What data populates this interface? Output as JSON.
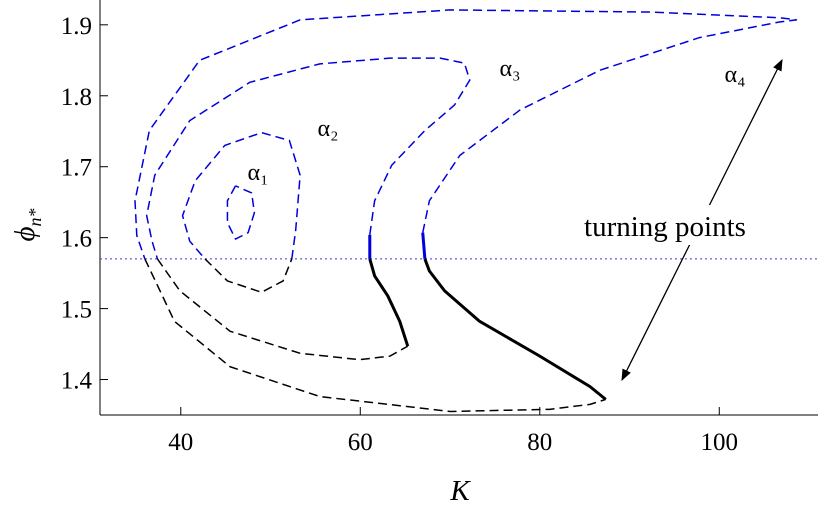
{
  "chart_data": {
    "type": "line",
    "x_label": "K",
    "y_label": {
      "symbol": "ϕ",
      "subscript": "n*"
    },
    "xlim": [
      31,
      111
    ],
    "ylim": [
      1.35,
      1.935
    ],
    "xticks": [
      40,
      60,
      80,
      100
    ],
    "yticks": [
      1.4,
      1.5,
      1.6,
      1.7,
      1.8,
      1.9
    ],
    "reference_line": {
      "y": 1.57,
      "color": "#3a3ad0",
      "style": "dotted"
    },
    "annotation": "turning points",
    "series": [
      {
        "name": "α₁",
        "segments": [
          {
            "style": "dashed",
            "color": "#0000dd",
            "width": 1.5,
            "x": [
              46.1,
              45.2,
              45.2,
              46.1,
              47.5,
              48.2,
              47.9,
              46.1
            ],
            "y": [
              1.673,
              1.652,
              1.621,
              1.598,
              1.607,
              1.635,
              1.663,
              1.673
            ]
          }
        ]
      },
      {
        "name": "α₂",
        "segments": [
          {
            "style": "dashed",
            "color": "#0000dd",
            "width": 1.5,
            "x": [
              52.37,
              52.8,
              53.3,
              52.1,
              49.0,
              44.9,
              41.6,
              40.2,
              41.0,
              42.7
            ],
            "y": [
              1.57,
              1.61,
              1.688,
              1.737,
              1.748,
              1.73,
              1.68,
              1.631,
              1.595,
              1.57
            ]
          },
          {
            "style": "dashed",
            "color": "#000000",
            "width": 1.5,
            "x": [
              42.7,
              45.2,
              49.0,
              51.4,
              52.37
            ],
            "y": [
              1.57,
              1.539,
              1.523,
              1.539,
              1.57
            ]
          }
        ]
      },
      {
        "name": "α₃",
        "segments": [
          {
            "style": "solid",
            "color": "#000000",
            "width": 3,
            "x": [
              65.29,
              64.4,
              63.06,
              61.6,
              61.06
            ],
            "y": [
              1.447,
              1.482,
              1.518,
              1.546,
              1.57
            ]
          },
          {
            "style": "solid",
            "color": "#0000dd",
            "width": 3,
            "x": [
              61.06,
              61.06
            ],
            "y": [
              1.57,
              1.604
            ]
          },
          {
            "style": "dashed",
            "color": "#0000dd",
            "width": 1.5,
            "x": [
              61.06,
              61.6,
              63.5,
              67.2,
              70.5,
              72.2,
              71.6,
              68.9,
              63.3,
              55.5,
              47.7,
              41.0,
              37.1,
              36.2,
              36.8,
              37.4
            ],
            "y": [
              1.604,
              1.652,
              1.702,
              1.751,
              1.787,
              1.822,
              1.846,
              1.853,
              1.853,
              1.845,
              1.819,
              1.765,
              1.688,
              1.631,
              1.595,
              1.57
            ]
          },
          {
            "style": "dashed",
            "color": "#000000",
            "width": 1.5,
            "x": [
              37.4,
              39.9,
              45.5,
              53.3,
              59.9,
              63.3,
              65.29
            ],
            "y": [
              1.57,
              1.525,
              1.468,
              1.437,
              1.428,
              1.433,
              1.447
            ]
          }
        ]
      },
      {
        "name": "α₄",
        "segments": [
          {
            "style": "solid",
            "color": "#000000",
            "width": 3,
            "x": [
              87.35,
              85.6,
              80.0,
              73.3,
              69.4,
              67.7,
              67.2
            ],
            "y": [
              1.372,
              1.39,
              1.433,
              1.482,
              1.525,
              1.553,
              1.57
            ]
          },
          {
            "style": "solid",
            "color": "#0000dd",
            "width": 3,
            "x": [
              67.2,
              66.96
            ],
            "y": [
              1.57,
              1.607
            ]
          },
          {
            "style": "dashed",
            "color": "#0000dd",
            "width": 1.5,
            "x": [
              66.96,
              67.7,
              71.1,
              77.8,
              86.7,
              97.8,
              106.7,
              108.6,
              106.7,
              92.3,
              70.0,
              53.3,
              42.1,
              36.5,
              34.9,
              35.1,
              36.0
            ],
            "y": [
              1.607,
              1.652,
              1.716,
              1.78,
              1.836,
              1.882,
              1.904,
              1.907,
              1.91,
              1.918,
              1.921,
              1.907,
              1.85,
              1.751,
              1.652,
              1.603,
              1.57
            ]
          },
          {
            "style": "dashed",
            "color": "#000000",
            "width": 1.5,
            "x": [
              36.0,
              39.3,
              45.5,
              55.5,
              70.0,
              81.1,
              85.6,
              87.35
            ],
            "y": [
              1.57,
              1.482,
              1.418,
              1.376,
              1.355,
              1.358,
              1.365,
              1.372
            ]
          }
        ]
      }
    ]
  }
}
